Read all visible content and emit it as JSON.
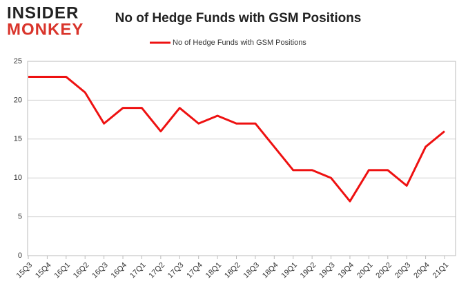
{
  "logo": {
    "top": "INSIDER",
    "bottom": "MONKEY"
  },
  "chart_data": {
    "type": "line",
    "title": "No of Hedge Funds with GSM Positions",
    "categories": [
      "15Q3",
      "15Q4",
      "16Q1",
      "16Q2",
      "16Q3",
      "16Q4",
      "17Q1",
      "17Q2",
      "17Q3",
      "17Q4",
      "18Q1",
      "18Q2",
      "18Q3",
      "18Q4",
      "19Q1",
      "19Q2",
      "19Q3",
      "19Q4",
      "20Q1",
      "20Q2",
      "20Q3",
      "20Q4",
      "21Q1"
    ],
    "series": [
      {
        "name": "No of Hedge Funds with GSM Positions",
        "color": "#ee1111",
        "values": [
          23,
          23,
          23,
          21,
          17,
          19,
          19,
          16,
          19,
          17,
          18,
          17,
          17,
          14,
          11,
          11,
          10,
          7,
          11,
          11,
          9,
          14,
          16
        ]
      }
    ],
    "ylim": [
      0,
      25
    ],
    "yticks": [
      0,
      5,
      10,
      15,
      20,
      25
    ],
    "grid": true,
    "legend": "top"
  }
}
